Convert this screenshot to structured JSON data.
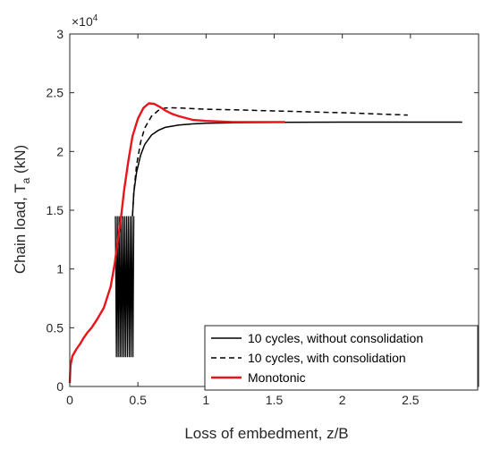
{
  "chart_data": {
    "type": "line",
    "title": "",
    "xlabel": "Loss of embedment, z/B",
    "ylabel_main": "Chain load, T",
    "ylabel_sub": "a",
    "ylabel_unit": " (kN)",
    "y_exponent_base": "×10",
    "y_exponent_power": "4",
    "xlim": [
      0,
      3
    ],
    "ylim": [
      0,
      30000
    ],
    "x_ticks": [
      0,
      0.5,
      1,
      1.5,
      2,
      2.5
    ],
    "x_tick_labels": [
      "0",
      "0.5",
      "1",
      "1.5",
      "2",
      "2.5"
    ],
    "y_ticks": [
      0,
      5000,
      10000,
      15000,
      20000,
      25000,
      30000
    ],
    "y_tick_labels": [
      "0",
      "0.5",
      "1",
      "1.5",
      "2",
      "2.5",
      "3"
    ],
    "grid": false,
    "legend_position": "bottom-right",
    "series": [
      {
        "name": "10 cycles, without consolidation",
        "color": "#000000",
        "style": "solid",
        "x": [
          0.46,
          0.47,
          0.49,
          0.52,
          0.55,
          0.6,
          0.65,
          0.7,
          0.8,
          0.9,
          1.0,
          1.2,
          1.5,
          2.0,
          2.5,
          2.88
        ],
        "y": [
          14500,
          16500,
          18200,
          19700,
          20600,
          21400,
          21800,
          22050,
          22250,
          22350,
          22400,
          22450,
          22480,
          22500,
          22500,
          22500
        ],
        "cycles": {
          "count": 10,
          "x_start": 0.335,
          "x_end": 0.47,
          "y_low": 2500,
          "y_high": 14500
        }
      },
      {
        "name": "10 cycles, with consolidation",
        "color": "#000000",
        "style": "dashed",
        "x": [
          0.46,
          0.47,
          0.49,
          0.52,
          0.55,
          0.6,
          0.65,
          0.7,
          0.75,
          0.8,
          0.9,
          1.0,
          1.2,
          1.5,
          2.0,
          2.48
        ],
        "y": [
          14500,
          16500,
          18800,
          20800,
          22000,
          23000,
          23500,
          23700,
          23720,
          23700,
          23650,
          23600,
          23550,
          23450,
          23300,
          23100
        ]
      },
      {
        "name": "Monotonic",
        "color": "#e8161b",
        "style": "solid",
        "x": [
          0,
          0.005,
          0.02,
          0.05,
          0.08,
          0.1,
          0.13,
          0.16,
          0.2,
          0.25,
          0.3,
          0.33,
          0.36,
          0.38,
          0.4,
          0.43,
          0.46,
          0.5,
          0.54,
          0.58,
          0.62,
          0.66,
          0.7,
          0.75,
          0.8,
          0.9,
          1.0,
          1.2,
          1.4,
          1.58
        ],
        "y": [
          300,
          1800,
          2600,
          3200,
          3700,
          4100,
          4600,
          5000,
          5700,
          6700,
          8500,
          10500,
          13000,
          14800,
          16800,
          19200,
          21300,
          22800,
          23700,
          24100,
          24050,
          23800,
          23500,
          23200,
          23000,
          22700,
          22600,
          22500,
          22500,
          22500
        ]
      }
    ]
  }
}
